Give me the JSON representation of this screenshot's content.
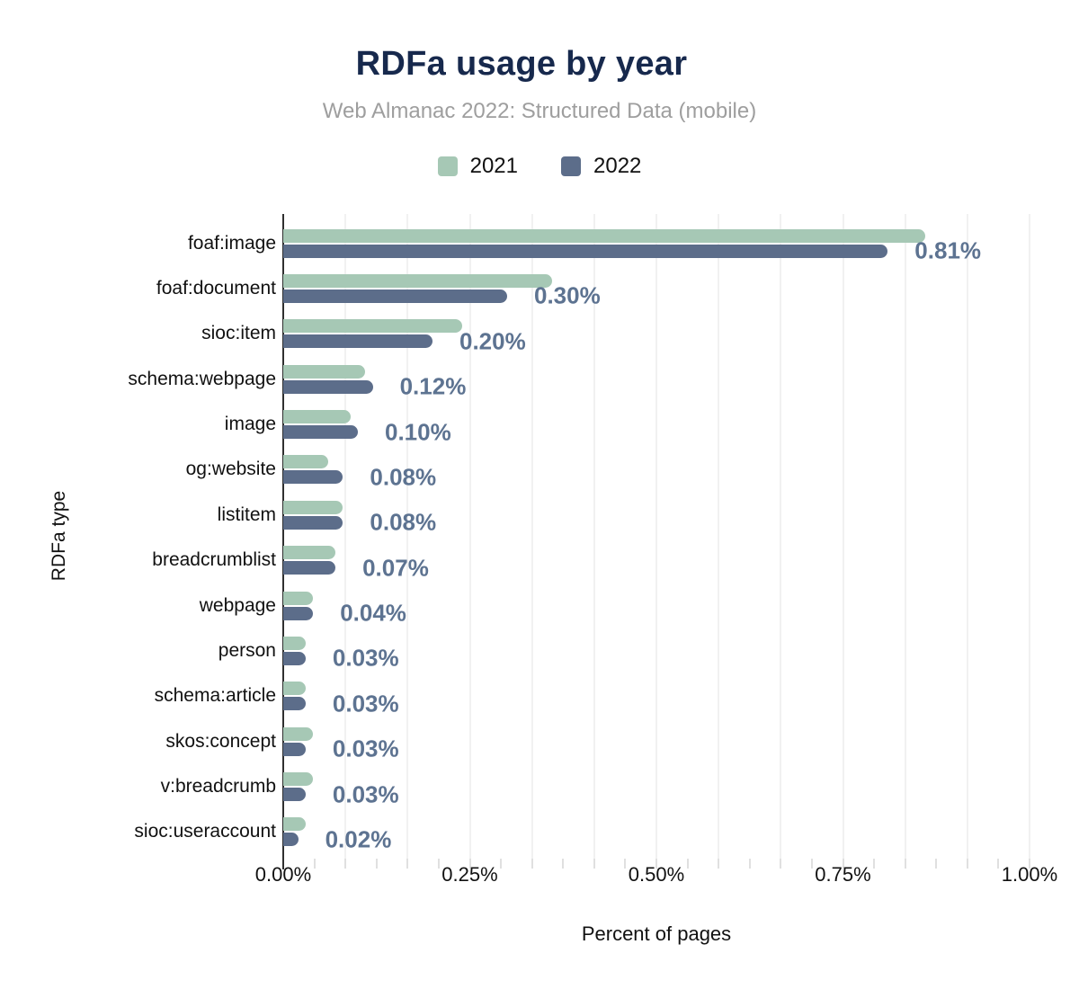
{
  "header": {
    "title": "RDFa usage by year",
    "subtitle": "Web Almanac 2022: Structured Data (mobile)"
  },
  "legend": [
    {
      "label": "2021",
      "color": "#a6c8b5"
    },
    {
      "label": "2022",
      "color": "#5c6d8a"
    }
  ],
  "colors": {
    "title": "#17294d",
    "subtitle": "#9e9e9e",
    "series_2021": "#a6c8b5",
    "series_2022": "#5c6d8a",
    "value_label": "#5d7391",
    "axis_line": "#2f2f2f",
    "gridline": "#f1f1f1"
  },
  "chart_data": {
    "type": "bar",
    "orientation": "horizontal",
    "title": "RDFa usage by year",
    "subtitle": "Web Almanac 2022: Structured Data (mobile)",
    "xlabel": "Percent of pages",
    "ylabel": "RDFa type",
    "xlim": [
      0,
      1.0
    ],
    "x_ticks": [
      "0.00%",
      "0.25%",
      "0.50%",
      "0.75%",
      "1.00%"
    ],
    "grid": {
      "vertical_divisions": 12,
      "minor_tick_divisions": 24,
      "horizontal": false
    },
    "legend_position": "top",
    "categories": [
      "foaf:image",
      "foaf:document",
      "sioc:item",
      "schema:webpage",
      "image",
      "og:website",
      "listitem",
      "breadcrumblist",
      "webpage",
      "person",
      "schema:article",
      "skos:concept",
      "v:breadcrumb",
      "sioc:useraccount"
    ],
    "series": [
      {
        "name": "2021",
        "color": "#a6c8b5",
        "values": [
          0.86,
          0.36,
          0.24,
          0.11,
          0.09,
          0.06,
          0.08,
          0.07,
          0.04,
          0.03,
          0.03,
          0.04,
          0.04,
          0.03
        ]
      },
      {
        "name": "2022",
        "color": "#5c6d8a",
        "values": [
          0.81,
          0.3,
          0.2,
          0.12,
          0.1,
          0.08,
          0.08,
          0.07,
          0.04,
          0.03,
          0.03,
          0.03,
          0.03,
          0.02
        ]
      }
    ],
    "value_labels": [
      "0.81%",
      "0.30%",
      "0.20%",
      "0.12%",
      "0.10%",
      "0.08%",
      "0.08%",
      "0.07%",
      "0.04%",
      "0.03%",
      "0.03%",
      "0.03%",
      "0.03%",
      "0.02%"
    ],
    "value_label_series": "2022"
  }
}
